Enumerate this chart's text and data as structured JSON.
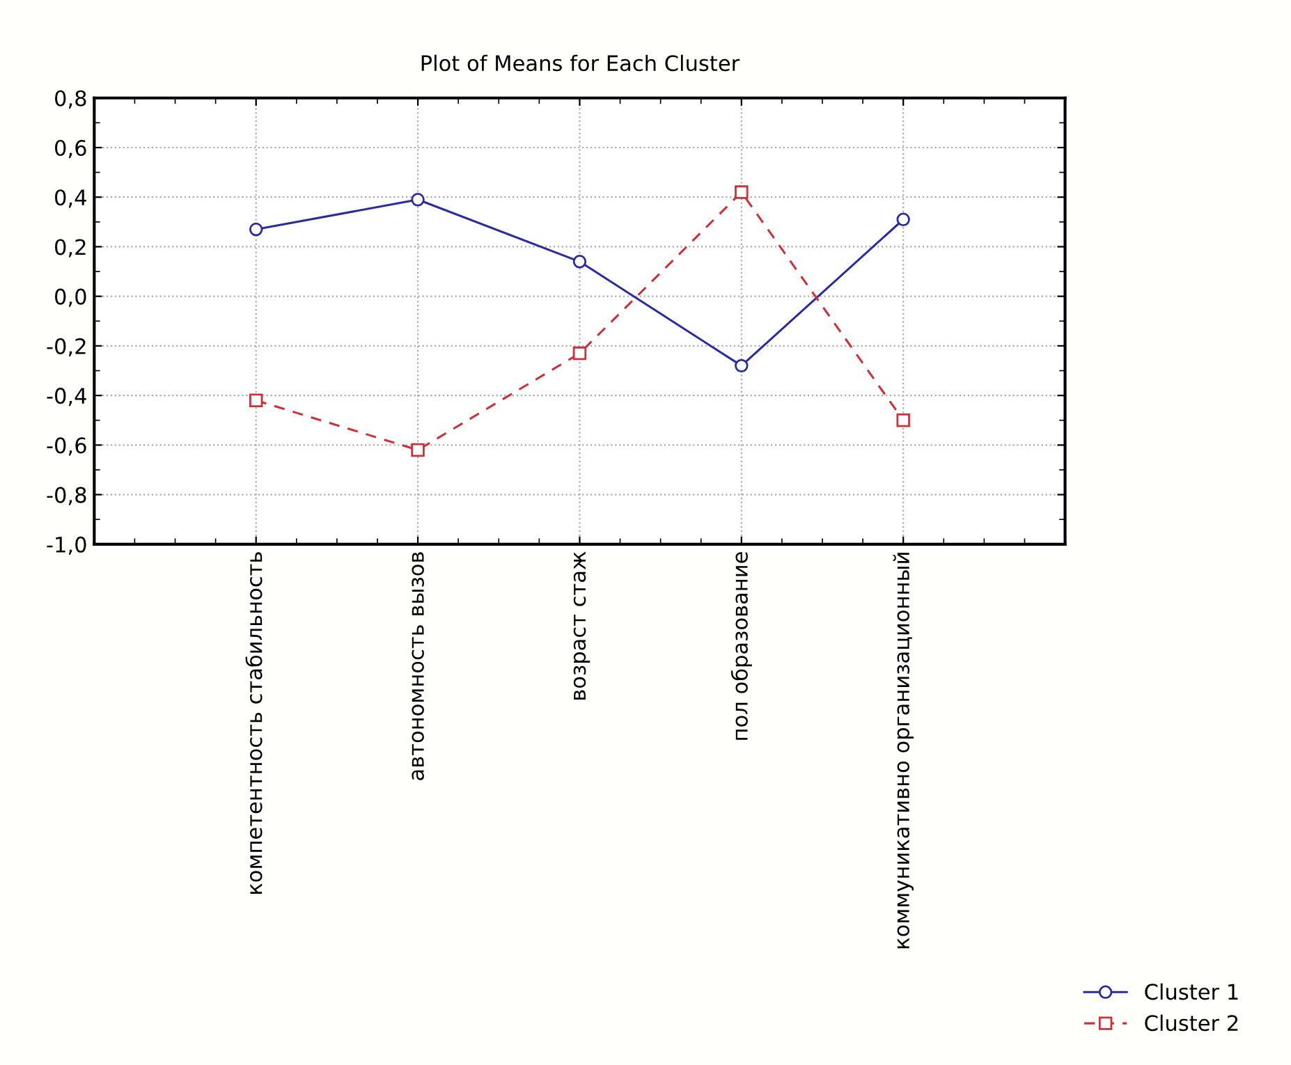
{
  "chart_data": {
    "type": "line",
    "title": "Plot of Means for Each Cluster",
    "categories": [
      "компетентность стабильность",
      "автономность вызов",
      "возраст стаж",
      "пол образование",
      "коммуникативно организационный"
    ],
    "series": [
      {
        "name": "Cluster 1",
        "color": "#2b2b9e",
        "marker": "circle",
        "line_style": "solid",
        "values": [
          0.27,
          0.39,
          0.14,
          -0.28,
          0.31
        ]
      },
      {
        "name": "Cluster 2",
        "color": "#c8323c",
        "marker": "square",
        "line_style": "dashed",
        "values": [
          -0.42,
          -0.62,
          -0.23,
          0.42,
          -0.5
        ]
      }
    ],
    "ylim": [
      -1.0,
      0.8
    ],
    "yticks": [
      {
        "value": -1.0,
        "label": "-1,0"
      },
      {
        "value": -0.8,
        "label": "-0,8"
      },
      {
        "value": -0.6,
        "label": "-0,6"
      },
      {
        "value": -0.4,
        "label": "-0,4"
      },
      {
        "value": -0.2,
        "label": "-0,2"
      },
      {
        "value": 0.0,
        "label": "0,0"
      },
      {
        "value": 0.2,
        "label": "0,2"
      },
      {
        "value": 0.4,
        "label": "0,4"
      },
      {
        "value": 0.6,
        "label": "0,6"
      },
      {
        "value": 0.8,
        "label": "0,8"
      }
    ],
    "grid": true,
    "legend": "bottom right"
  }
}
